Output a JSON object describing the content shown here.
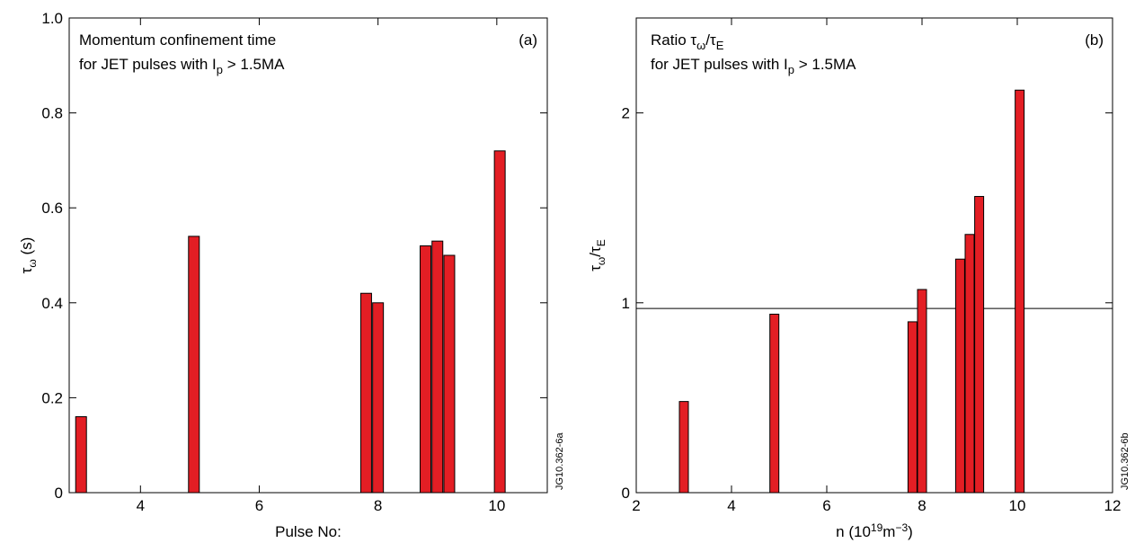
{
  "chart_data": [
    {
      "type": "bar",
      "title": "Momentum confinement time",
      "subtitle": {
        "text": "for JET pulses with I",
        "sub": "p",
        "rest": " > 1.5MA"
      },
      "panel_label": "(a)",
      "code": "JG10.362-6a",
      "xlabel": "Pulse No:",
      "ylabel": {
        "text": "τ",
        "sub": "ω",
        "rest": " (s)"
      },
      "x": [
        3.0,
        4.9,
        7.8,
        8.0,
        8.8,
        9.0,
        9.2,
        10.05
      ],
      "values": [
        0.16,
        0.54,
        0.42,
        0.4,
        0.52,
        0.53,
        0.5,
        0.72
      ],
      "color": "#e31e24",
      "xlim": [
        2.8,
        10.85
      ],
      "xticks": [
        4,
        6,
        8,
        10
      ],
      "ylim": [
        0,
        1
      ],
      "yticks": [
        0,
        0.2,
        0.4,
        0.6,
        0.8,
        {
          "value": 1,
          "label": "1.0"
        }
      ]
    },
    {
      "type": "bar",
      "title": {
        "text": "Ratio τ",
        "sub": "ω",
        "mid": "/τ",
        "sub2": "E"
      },
      "subtitle": {
        "text": "for JET pulses with I",
        "sub": "p",
        "rest": " > 1.5MA"
      },
      "panel_label": "(b)",
      "code": "JG10.362-6b",
      "xlabel": {
        "text": "n (10",
        "sup": "19",
        "mid": "m",
        "sup2": "−3",
        "rest": ")"
      },
      "ylabel": {
        "text": "τ",
        "sub": "ω",
        "mid": "/τ",
        "sub2": "E"
      },
      "x": [
        3.0,
        4.9,
        7.8,
        8.0,
        8.8,
        9.0,
        9.2,
        10.05
      ],
      "values": [
        0.48,
        0.94,
        0.9,
        1.07,
        1.23,
        1.36,
        1.56,
        2.12
      ],
      "color": "#e31e24",
      "reference_line": 0.97,
      "xlim": [
        2,
        12
      ],
      "xticks": [
        2,
        4,
        6,
        8,
        10,
        12
      ],
      "ylim": [
        0,
        2.5
      ],
      "yticks": [
        0,
        1,
        2
      ]
    }
  ]
}
